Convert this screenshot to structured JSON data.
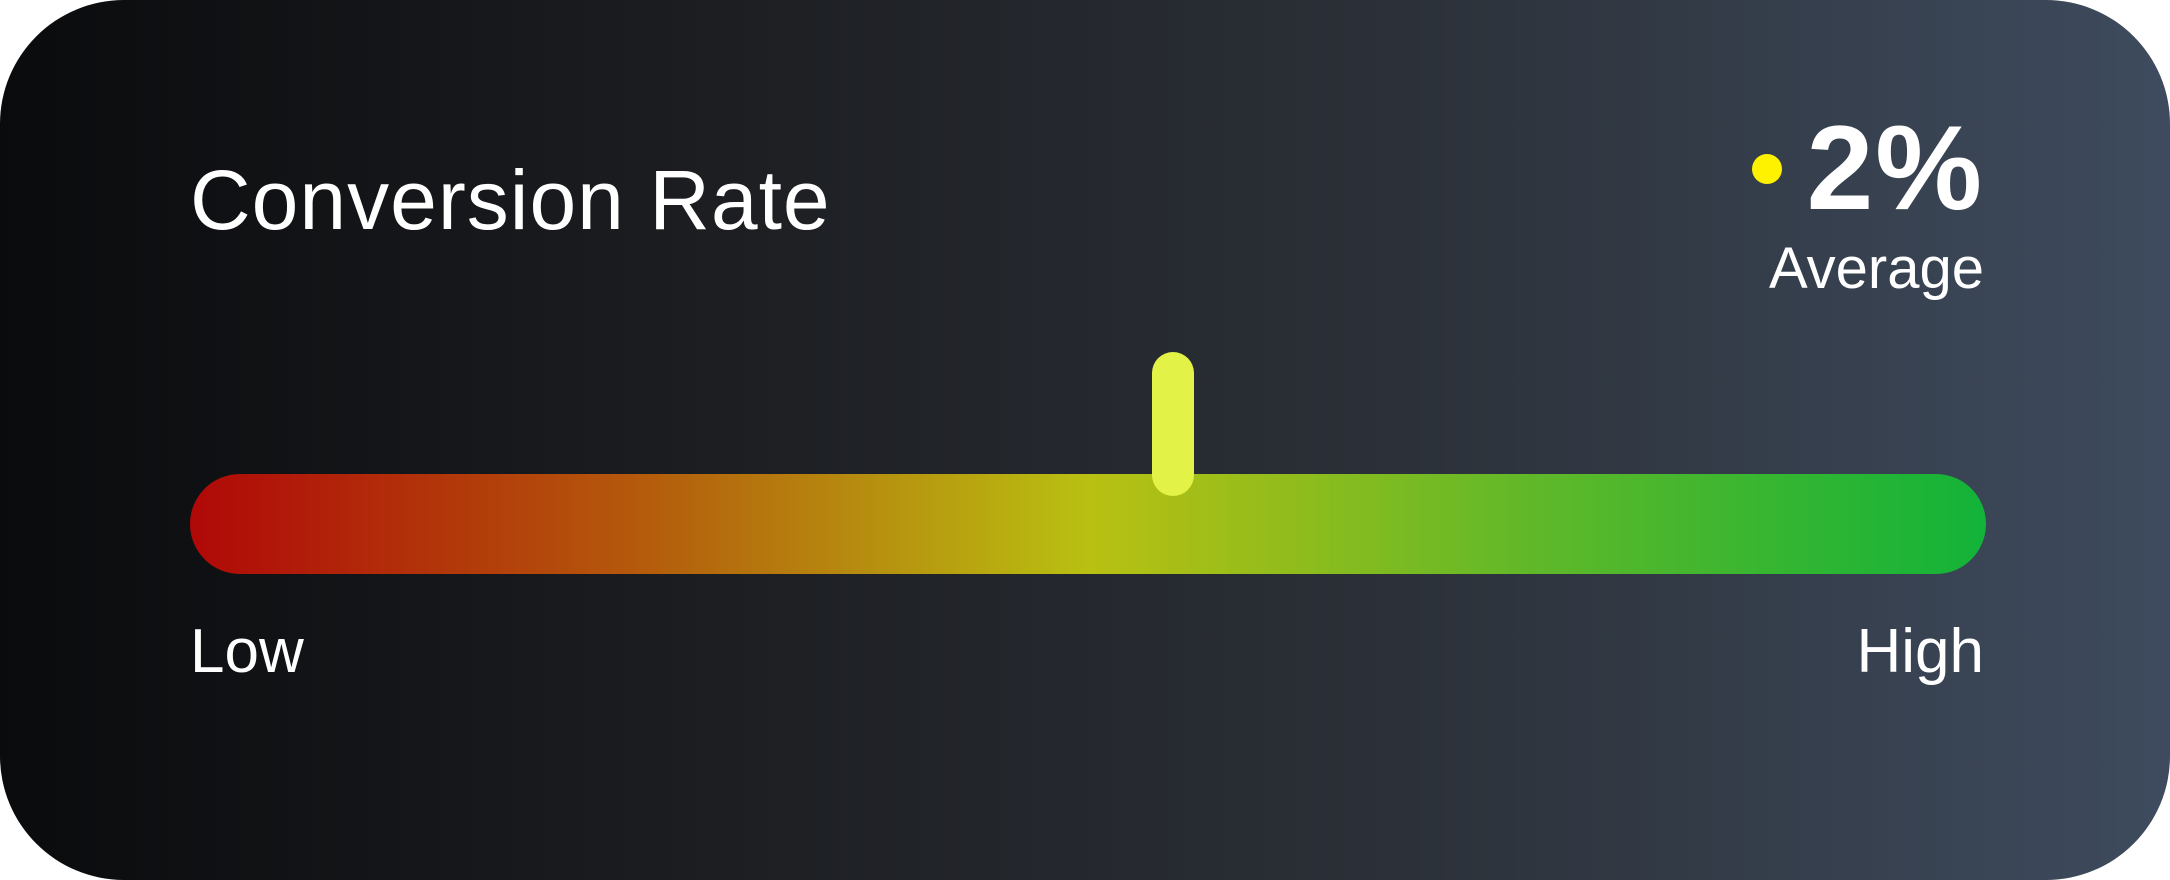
{
  "card": {
    "title": "Conversion Rate",
    "value": "2%",
    "level": "Average",
    "gauge": {
      "position": 0.55,
      "low_label": "Low",
      "high_label": "High"
    }
  },
  "colors": {
    "indicator_dot": "#fff200",
    "marker": "#e2f247",
    "gauge_stops": [
      "#b00808",
      "#b45a0c",
      "#b9c012",
      "#5fb829",
      "#12b339"
    ]
  }
}
